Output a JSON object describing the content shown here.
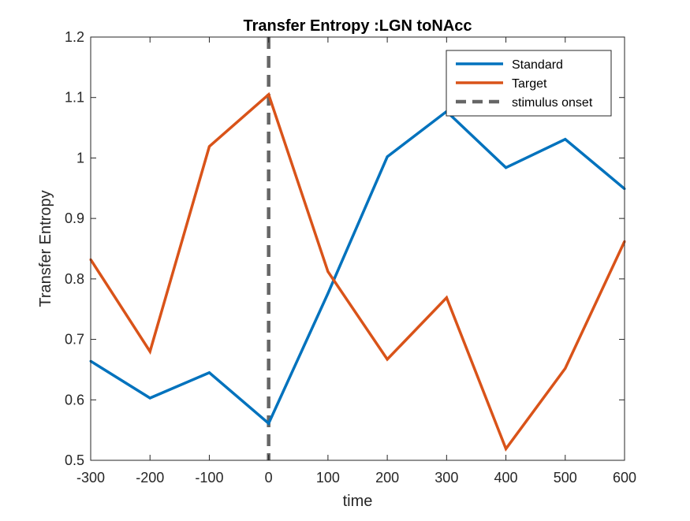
{
  "chart_data": {
    "type": "line",
    "title": "Transfer Entropy :LGN toNAcc",
    "xlabel": "time",
    "ylabel": "Transfer Entropy",
    "xlim": [
      -300,
      600
    ],
    "ylim": [
      0.5,
      1.2
    ],
    "xticks": [
      -300,
      -200,
      -100,
      0,
      100,
      200,
      300,
      400,
      500,
      600
    ],
    "yticks": [
      0.5,
      0.6,
      0.7,
      0.8,
      0.9,
      1.0,
      1.1,
      1.2
    ],
    "ytick_labels": [
      "0.5",
      "0.6",
      "0.7",
      "0.8",
      "0.9",
      "1",
      "1.1",
      "1.2"
    ],
    "x": [
      -300,
      -200,
      -100,
      0,
      100,
      200,
      300,
      400,
      500,
      600
    ],
    "series": [
      {
        "name": "Standard",
        "color": "#0072BD",
        "values": [
          0.664,
          0.603,
          0.645,
          0.561,
          0.776,
          1.002,
          1.077,
          0.984,
          1.031,
          0.949
        ]
      },
      {
        "name": "Target",
        "color": "#D95319",
        "values": [
          0.832,
          0.68,
          1.019,
          1.105,
          0.812,
          0.667,
          0.769,
          0.519,
          0.652,
          0.862
        ]
      }
    ],
    "reference_lines": [
      {
        "name": "stimulus onset",
        "x": 0,
        "style": "dashed",
        "color": "#666666"
      }
    ],
    "grid": false,
    "legend_position": "top-right"
  }
}
